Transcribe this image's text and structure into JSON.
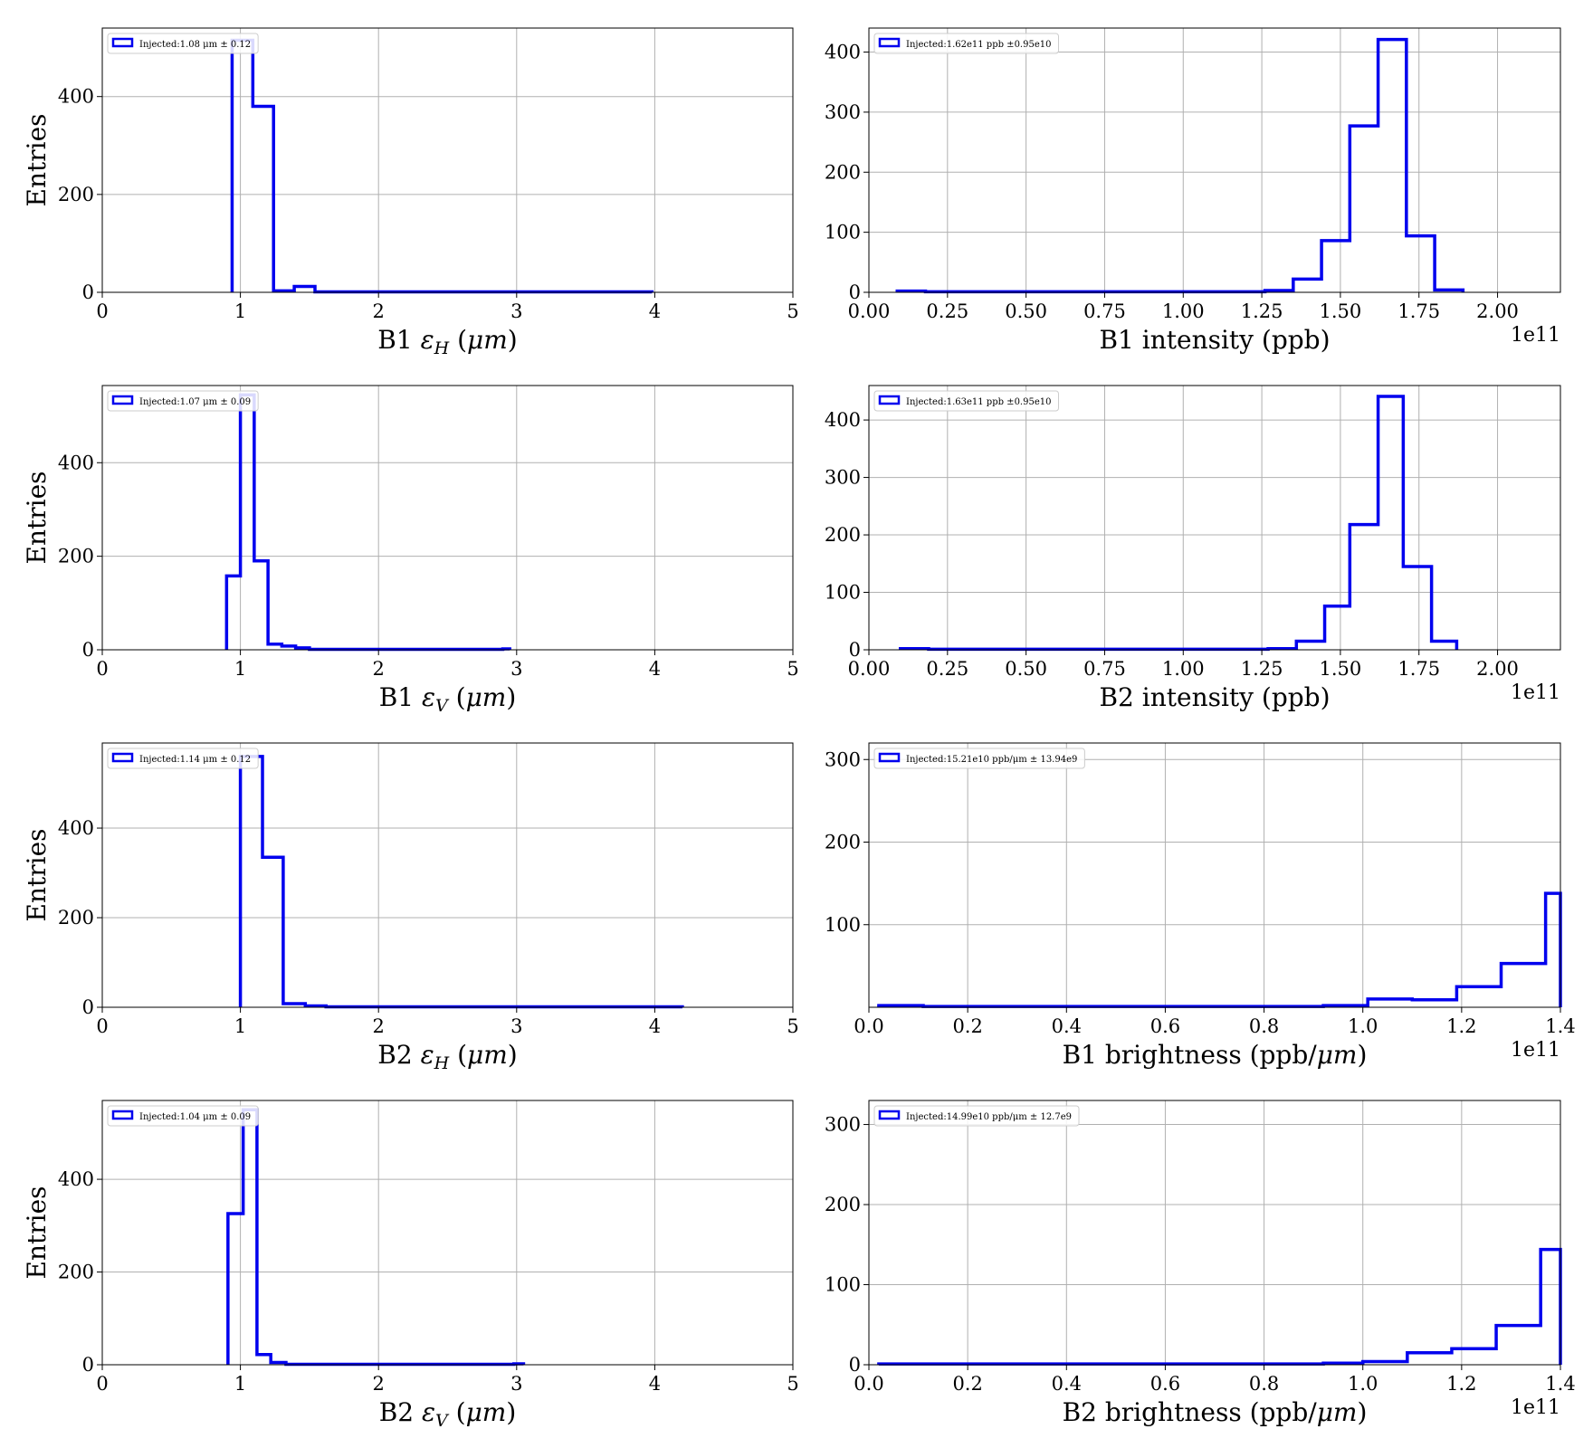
{
  "colors": {
    "series": "#0000ee",
    "grid": "#b0b0b0",
    "axes": "#000000"
  },
  "chart_data": [
    {
      "type": "histogram",
      "ylabel": "Entries",
      "xlabel_parts": [
        {
          "t": "B1 "
        },
        {
          "t": "ε",
          "i": true
        },
        {
          "t": "H",
          "i": true,
          "sub": true
        },
        {
          "t": " ("
        },
        {
          "t": "μm",
          "i": true
        },
        {
          "t": ")"
        }
      ],
      "offset_label": "",
      "legend": "Injected:1.08 μm ± 0.12",
      "xlim": [
        0,
        5
      ],
      "ylim": [
        0,
        540
      ],
      "grid": true,
      "legend_position": "upper-left",
      "xticks": [
        0,
        1,
        2,
        3,
        4,
        5
      ],
      "xtick_labels": [
        "0",
        "1",
        "2",
        "3",
        "4",
        "5"
      ],
      "yticks": [
        0,
        200,
        400
      ],
      "ytick_labels": [
        "0",
        "200",
        "400"
      ],
      "bin_edges": [
        0.94,
        1.09,
        1.24,
        1.39,
        1.54,
        1.69,
        1.84,
        1.99,
        2.14,
        2.29,
        2.44,
        2.59,
        2.74,
        2.89,
        3.04,
        3.19,
        3.34,
        3.49,
        3.64,
        3.79,
        3.94,
        3.98
      ],
      "counts": [
        515,
        380,
        3,
        12,
        1,
        1,
        1,
        1,
        1,
        1,
        1,
        1,
        1,
        1,
        1,
        1,
        1,
        1,
        1,
        1,
        1
      ]
    },
    {
      "type": "histogram",
      "ylabel": "",
      "xlabel_parts": [
        {
          "t": "B1 intensity (ppb)"
        }
      ],
      "offset_label": "1e11",
      "legend": "Injected:1.62e11 ppb ±0.95e10",
      "xlim": [
        0,
        2.2
      ],
      "ylim": [
        0,
        440
      ],
      "grid": true,
      "legend_position": "upper-left",
      "xticks": [
        0,
        0.25,
        0.5,
        0.75,
        1.0,
        1.25,
        1.5,
        1.75,
        2.0
      ],
      "xtick_labels": [
        "0.00",
        "0.25",
        "0.50",
        "0.75",
        "1.00",
        "1.25",
        "1.50",
        "1.75",
        "2.00"
      ],
      "yticks": [
        0,
        100,
        200,
        300,
        400
      ],
      "ytick_labels": [
        "0",
        "100",
        "200",
        "300",
        "400"
      ],
      "bin_edges": [
        0.09,
        0.18,
        0.27,
        0.36,
        0.45,
        0.54,
        0.63,
        0.72,
        0.81,
        0.9,
        0.99,
        1.08,
        1.17,
        1.26,
        1.35,
        1.44,
        1.53,
        1.62,
        1.71,
        1.8,
        1.89
      ],
      "counts": [
        2,
        1,
        1,
        1,
        1,
        1,
        1,
        1,
        1,
        1,
        1,
        1,
        1,
        3,
        22,
        86,
        277,
        421,
        94,
        4
      ]
    },
    {
      "type": "histogram",
      "ylabel": "Entries",
      "xlabel_parts": [
        {
          "t": "B1 "
        },
        {
          "t": "ε",
          "i": true
        },
        {
          "t": "V",
          "i": true,
          "sub": true
        },
        {
          "t": " ("
        },
        {
          "t": "μm",
          "i": true
        },
        {
          "t": ")"
        }
      ],
      "offset_label": "",
      "legend": "Injected:1.07 μm ± 0.09",
      "xlim": [
        0,
        5
      ],
      "ylim": [
        0,
        565
      ],
      "grid": true,
      "legend_position": "upper-left",
      "xticks": [
        0,
        1,
        2,
        3,
        4,
        5
      ],
      "xtick_labels": [
        "0",
        "1",
        "2",
        "3",
        "4",
        "5"
      ],
      "yticks": [
        0,
        200,
        400
      ],
      "ytick_labels": [
        "0",
        "200",
        "400"
      ],
      "bin_edges": [
        0.9,
        1.0,
        1.1,
        1.2,
        1.3,
        1.4,
        1.5,
        1.6,
        1.7,
        1.8,
        1.9,
        2.0,
        2.1,
        2.2,
        2.3,
        2.4,
        2.5,
        2.6,
        2.7,
        2.8,
        2.9,
        2.95
      ],
      "counts": [
        158,
        545,
        190,
        12,
        8,
        4,
        1,
        1,
        1,
        1,
        1,
        1,
        1,
        1,
        1,
        1,
        1,
        1,
        1,
        1,
        2
      ]
    },
    {
      "type": "histogram",
      "ylabel": "",
      "xlabel_parts": [
        {
          "t": "B2 intensity (ppb)"
        }
      ],
      "offset_label": "1e11",
      "legend": "Injected:1.63e11 ppb ±0.95e10",
      "xlim": [
        0,
        2.2
      ],
      "ylim": [
        0,
        460
      ],
      "grid": true,
      "legend_position": "upper-left",
      "xticks": [
        0,
        0.25,
        0.5,
        0.75,
        1.0,
        1.25,
        1.5,
        1.75,
        2.0
      ],
      "xtick_labels": [
        "0.00",
        "0.25",
        "0.50",
        "0.75",
        "1.00",
        "1.25",
        "1.50",
        "1.75",
        "2.00"
      ],
      "yticks": [
        0,
        100,
        200,
        300,
        400
      ],
      "ytick_labels": [
        "0",
        "100",
        "200",
        "300",
        "400"
      ],
      "bin_edges": [
        0.1,
        0.19,
        0.28,
        0.37,
        0.46,
        0.55,
        0.64,
        0.73,
        0.82,
        0.91,
        1.0,
        1.09,
        1.18,
        1.27,
        1.36,
        1.45,
        1.53,
        1.62,
        1.7,
        1.79,
        1.87
      ],
      "counts": [
        2,
        1,
        1,
        1,
        1,
        1,
        1,
        1,
        1,
        1,
        1,
        1,
        1,
        2,
        15,
        76,
        218,
        441,
        145,
        15
      ]
    },
    {
      "type": "histogram",
      "ylabel": "Entries",
      "xlabel_parts": [
        {
          "t": "B2 "
        },
        {
          "t": "ε",
          "i": true
        },
        {
          "t": "H",
          "i": true,
          "sub": true
        },
        {
          "t": " ("
        },
        {
          "t": "μm",
          "i": true
        },
        {
          "t": ")"
        }
      ],
      "offset_label": "",
      "legend": "Injected:1.14 μm ± 0.12",
      "xlim": [
        0,
        5
      ],
      "ylim": [
        0,
        590
      ],
      "grid": true,
      "legend_position": "upper-left",
      "xticks": [
        0,
        1,
        2,
        3,
        4,
        5
      ],
      "xtick_labels": [
        "0",
        "1",
        "2",
        "3",
        "4",
        "5"
      ],
      "yticks": [
        0,
        200,
        400
      ],
      "ytick_labels": [
        "0",
        "200",
        "400"
      ],
      "bin_edges": [
        1.0,
        1.16,
        1.31,
        1.47,
        1.62,
        1.78,
        1.93,
        2.09,
        2.24,
        2.4,
        2.55,
        2.71,
        2.86,
        3.02,
        3.17,
        3.33,
        3.48,
        3.64,
        3.79,
        3.95,
        4.1,
        4.2
      ],
      "counts": [
        560,
        335,
        8,
        3,
        1,
        1,
        1,
        1,
        1,
        1,
        1,
        1,
        1,
        1,
        1,
        1,
        1,
        1,
        1,
        1,
        1
      ]
    },
    {
      "type": "histogram",
      "ylabel": "",
      "xlabel_parts": [
        {
          "t": "B1 brightness (ppb/"
        },
        {
          "t": "μm",
          "i": true
        },
        {
          "t": ")"
        }
      ],
      "offset_label": "1e11",
      "legend": "Injected:15.21e10 ppb/μm ± 13.94e9",
      "xlim": [
        0,
        1.4
      ],
      "ylim": [
        0,
        320
      ],
      "grid": true,
      "legend_position": "upper-left",
      "xticks": [
        0,
        0.2,
        0.4,
        0.6,
        0.8,
        1.0,
        1.2,
        1.4
      ],
      "xtick_labels": [
        "0.0",
        "0.2",
        "0.4",
        "0.6",
        "0.8",
        "1.0",
        "1.2",
        "1.4"
      ],
      "yticks": [
        100,
        200,
        300
      ],
      "ytick_labels": [
        "100",
        "200",
        "300"
      ],
      "bin_edges": [
        0.02,
        0.11,
        0.2,
        0.29,
        0.38,
        0.47,
        0.56,
        0.65,
        0.74,
        0.83,
        0.92,
        1.01,
        1.1,
        1.19,
        1.28,
        1.37,
        1.4
      ],
      "counts": [
        2,
        1,
        1,
        1,
        1,
        1,
        1,
        1,
        1,
        1,
        2,
        10,
        9,
        25,
        53,
        138
      ]
    },
    {
      "type": "histogram",
      "ylabel": "Entries",
      "xlabel_parts": [
        {
          "t": "B2 "
        },
        {
          "t": "ε",
          "i": true
        },
        {
          "t": "V",
          "i": true,
          "sub": true
        },
        {
          "t": " ("
        },
        {
          "t": "μm",
          "i": true
        },
        {
          "t": ")"
        }
      ],
      "offset_label": "",
      "legend": "Injected:1.04 μm ± 0.09",
      "xlim": [
        0,
        5
      ],
      "ylim": [
        0,
        570
      ],
      "grid": true,
      "legend_position": "upper-left",
      "xticks": [
        0,
        1,
        2,
        3,
        4,
        5
      ],
      "xtick_labels": [
        "0",
        "1",
        "2",
        "3",
        "4",
        "5"
      ],
      "yticks": [
        0,
        200,
        400
      ],
      "ytick_labels": [
        "0",
        "200",
        "400"
      ],
      "bin_edges": [
        0.91,
        1.02,
        1.12,
        1.22,
        1.33,
        1.43,
        1.53,
        1.64,
        1.74,
        1.84,
        1.95,
        2.05,
        2.15,
        2.26,
        2.36,
        2.46,
        2.57,
        2.67,
        2.77,
        2.88,
        2.98,
        3.05
      ],
      "counts": [
        326,
        550,
        22,
        5,
        1,
        1,
        1,
        1,
        1,
        1,
        1,
        1,
        1,
        1,
        1,
        1,
        1,
        1,
        1,
        1,
        2
      ]
    },
    {
      "type": "histogram",
      "ylabel": "",
      "xlabel_parts": [
        {
          "t": "B2 brightness (ppb/"
        },
        {
          "t": "μm",
          "i": true
        },
        {
          "t": ")"
        }
      ],
      "offset_label": "1e11",
      "legend": "Injected:14.99e10 ppb/μm ± 12.7e9",
      "xlim": [
        0,
        1.4
      ],
      "ylim": [
        0,
        330
      ],
      "grid": true,
      "legend_position": "upper-left",
      "xticks": [
        0,
        0.2,
        0.4,
        0.6,
        0.8,
        1.0,
        1.2,
        1.4
      ],
      "xtick_labels": [
        "0.0",
        "0.2",
        "0.4",
        "0.6",
        "0.8",
        "1.0",
        "1.2",
        "1.4"
      ],
      "yticks": [
        0,
        100,
        200,
        300
      ],
      "ytick_labels": [
        "0",
        "100",
        "200",
        "300"
      ],
      "bin_edges": [
        0.02,
        0.11,
        0.2,
        0.29,
        0.38,
        0.47,
        0.56,
        0.65,
        0.74,
        0.83,
        0.92,
        1.0,
        1.09,
        1.18,
        1.27,
        1.36,
        1.4
      ],
      "counts": [
        1,
        1,
        1,
        1,
        1,
        1,
        1,
        1,
        1,
        1,
        2,
        4,
        15,
        20,
        49,
        144
      ]
    }
  ]
}
